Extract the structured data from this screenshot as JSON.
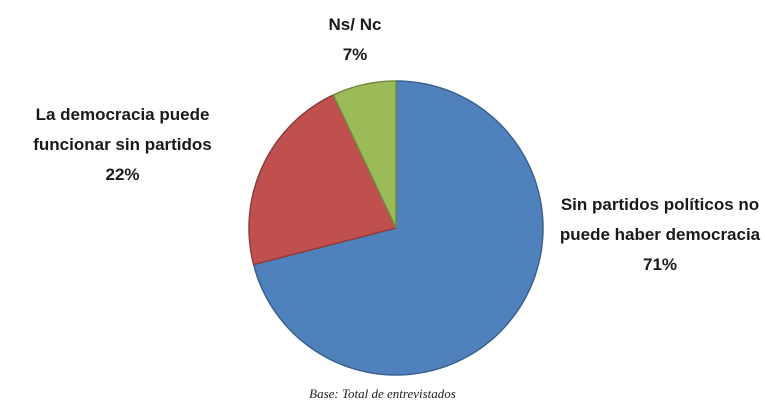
{
  "chart_data": {
    "type": "pie",
    "categories": [
      "Sin partidos políticos no puede haber democracia",
      "La democracia puede funcionar sin partidos",
      "Ns/ Nc"
    ],
    "values": [
      71,
      22,
      7
    ],
    "value_labels": [
      "71%",
      "22%",
      "7%"
    ],
    "colors": [
      "#4f81bd",
      "#c0504d",
      "#9bbb59"
    ],
    "note": "Base: Total de entrevistados"
  }
}
